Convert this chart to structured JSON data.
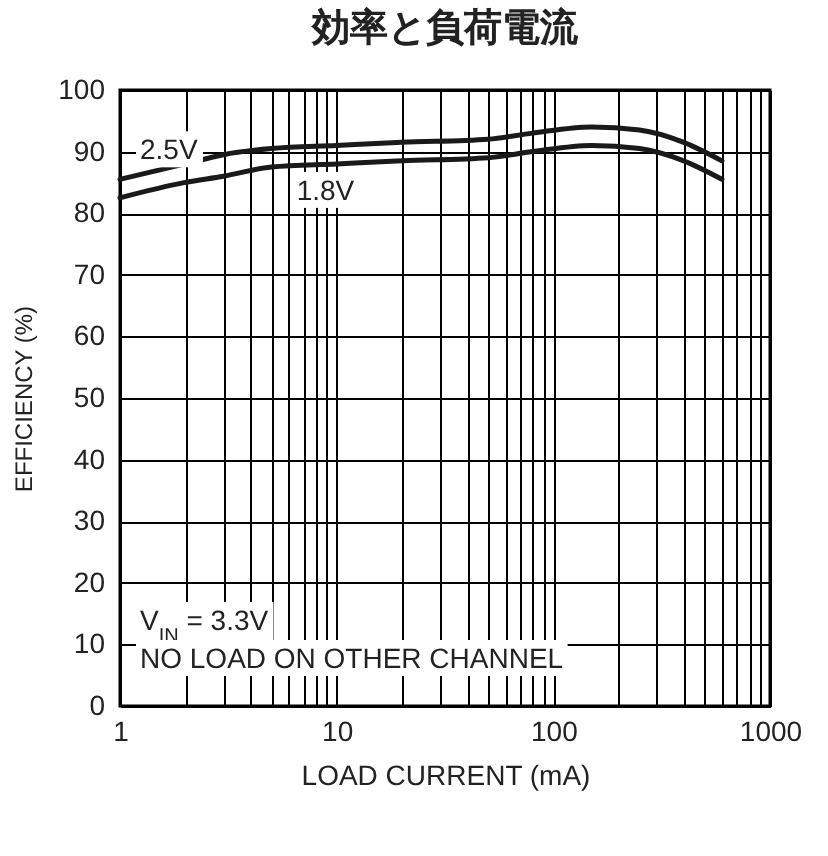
{
  "chart_data": {
    "type": "line",
    "title": "効率と負荷電流",
    "xlabel": "LOAD CURRENT (mA)",
    "ylabel": "EFFICIENCY (%)",
    "x": [
      1,
      2,
      3,
      5,
      10,
      20,
      50,
      80,
      150,
      250,
      400,
      600
    ],
    "series": [
      {
        "name": "2.5V",
        "color": "#1a1a1a",
        "values": [
          85.5,
          88,
          89.5,
          90.5,
          91,
          91.5,
          92,
          93,
          94,
          93.5,
          91.5,
          88.5
        ]
      },
      {
        "name": "1.8V",
        "color": "#1a1a1a",
        "values": [
          82.5,
          85,
          86,
          87.5,
          88,
          88.5,
          89,
          90,
          91,
          90.5,
          88.5,
          85.5
        ]
      }
    ],
    "log": "x",
    "xlim": [
      1,
      1000
    ],
    "xticks": [
      1,
      10,
      100,
      1000
    ],
    "ylim": [
      0,
      100
    ],
    "yticks": [
      0,
      10,
      20,
      30,
      40,
      50,
      60,
      70,
      80,
      90,
      100
    ],
    "grid": true,
    "legend": false,
    "marker": "none",
    "line_style": "solid",
    "annotations": [
      "V$_{IN}$ = 3.3V",
      "NO LOAD ON OTHER CHANNEL"
    ]
  }
}
